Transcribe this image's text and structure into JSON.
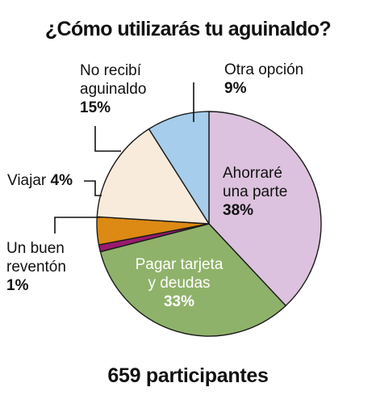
{
  "chart_data": {
    "type": "pie",
    "title": "¿Cómo utilizarás tu aguinaldo?",
    "footer": "659 participantes",
    "slices": [
      {
        "label": "Ahorraré una parte",
        "value": 38,
        "value_label": "38%",
        "color": "#dcc2de"
      },
      {
        "label": "Pagar tarjeta y deudas",
        "value": 33,
        "value_label": "33%",
        "color": "#8fb26a"
      },
      {
        "label": "Un buen reventón",
        "value": 1,
        "value_label": "1%",
        "color": "#9a1a6e"
      },
      {
        "label": "Viajar",
        "value": 4,
        "value_label": "4%",
        "color": "#dc8a14"
      },
      {
        "label": "No recibí aguinaldo",
        "value": 15,
        "value_label": "15%",
        "color": "#f8ebdb"
      },
      {
        "label": "Otra opción",
        "value": 9,
        "value_label": "9%",
        "color": "#a6cdeb"
      }
    ],
    "labels": {
      "ahorrare": {
        "line1": "Ahorraré",
        "line2": "una parte",
        "pct": "38%"
      },
      "pagar": {
        "line1": "Pagar tarjeta",
        "line2": "y deudas",
        "pct": "33%"
      },
      "reventon": {
        "line1": "Un buen",
        "line2": "reventón",
        "pct": "1%"
      },
      "viajar": {
        "line1": "Viajar",
        "pct": "4%"
      },
      "no_recibi": {
        "line1": "No recibí",
        "line2": "aguinaldo",
        "pct": "15%"
      },
      "otra": {
        "line1": "Otra opción",
        "pct": "9%"
      }
    },
    "legend": "none"
  }
}
